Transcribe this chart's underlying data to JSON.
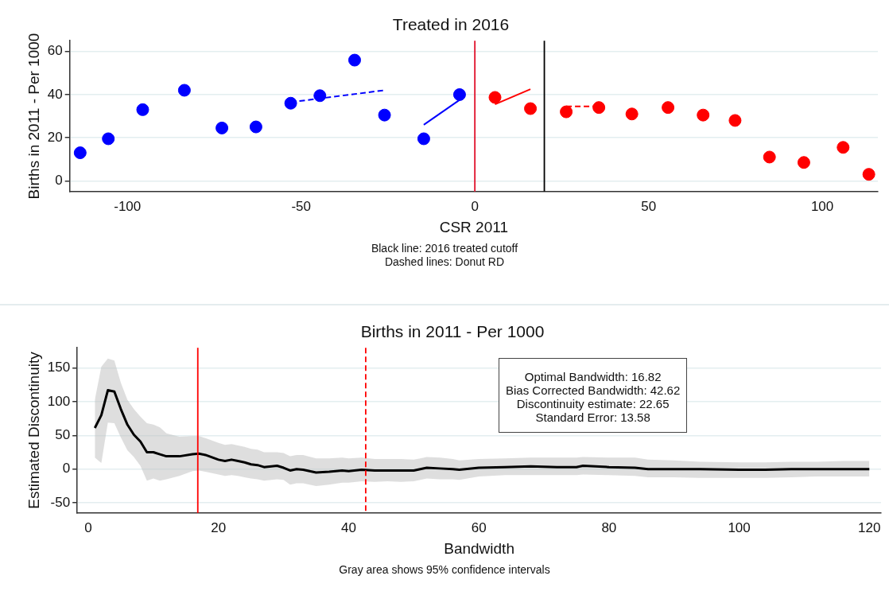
{
  "chart_data": [
    {
      "type": "scatter",
      "title": "Treated in 2016",
      "xlabel": "CSR 2011",
      "ylabel": "Births in 2011 - Per 1000",
      "xlim": [
        -116.6,
        116
      ],
      "xticks": [
        -100,
        -50,
        0,
        50,
        100
      ],
      "ylim": [
        -5,
        65
      ],
      "yticks": [
        0,
        20,
        40,
        60
      ],
      "grid": "y",
      "legend": false,
      "marker": "circle",
      "series": [
        {
          "color": "#0000ff",
          "x": [
            -113.6,
            -105.5,
            -95.6,
            -83.6,
            -72.8,
            -63,
            -53,
            -44.6,
            -34.6,
            -26,
            -14.7,
            -4.4
          ],
          "values": [
            13,
            19.5,
            33,
            42,
            24.5,
            25,
            36,
            39.5,
            56,
            30.5,
            19.5,
            40
          ]
        },
        {
          "color": "#ff0000",
          "x": [
            5.8,
            16,
            26.3,
            35.7,
            45.2,
            55.6,
            65.7,
            74.9,
            84.8,
            94.7,
            106,
            113.4
          ],
          "values": [
            38.7,
            33.5,
            32,
            34,
            31,
            34,
            30.5,
            28,
            11,
            8.5,
            15.5,
            3
          ]
        },
        {
          "type": "line",
          "marker": "none",
          "line_style": "dashed",
          "color": "#0000ff",
          "x": [
            -53,
            -26
          ],
          "values": [
            36.5,
            42
          ]
        },
        {
          "type": "line",
          "marker": "none",
          "line_style": "solid",
          "color": "#0000ff",
          "x": [
            -14.7,
            -4.4
          ],
          "values": [
            26,
            37.5
          ]
        },
        {
          "type": "line",
          "marker": "none",
          "line_style": "solid",
          "color": "#ff0000",
          "x": [
            5.8,
            16
          ],
          "values": [
            35.5,
            42.5
          ]
        },
        {
          "type": "line",
          "marker": "none",
          "line_style": "dashed",
          "color": "#ff0000",
          "x": [
            26.3,
            35.7
          ],
          "values": [
            34.5,
            34.5
          ]
        }
      ],
      "ref_lines": [
        {
          "axis": "x",
          "value": 0,
          "color": "#e0102a",
          "line_style": "solid"
        },
        {
          "axis": "x",
          "value": 20,
          "color": "#000000",
          "line_style": "solid"
        }
      ],
      "annotations": [
        "Black line: 2016 treated cutoff",
        "Dashed lines: Donut RD"
      ]
    },
    {
      "type": "line",
      "title": "Births in 2011 - Per 1000",
      "xlabel": "Bandwidth",
      "ylabel": "Estimated Discontinuity",
      "xlim": [
        -1.7,
        121.8
      ],
      "xticks": [
        0,
        20,
        40,
        60,
        80,
        100,
        120
      ],
      "ylim": [
        -65,
        180
      ],
      "yticks": [
        -50,
        0,
        50,
        100,
        150
      ],
      "grid": "y",
      "legend": false,
      "marker": "none",
      "line_style": "solid",
      "x": [
        1,
        2,
        3,
        4,
        5,
        6,
        7,
        8,
        9,
        10,
        11,
        12,
        14,
        16,
        17,
        18,
        20,
        21,
        22,
        23,
        24,
        25,
        26,
        27,
        29,
        30,
        31,
        32,
        33,
        35,
        37,
        39,
        40,
        42,
        44,
        46,
        48,
        50,
        51,
        52,
        54,
        56,
        57,
        60,
        64,
        68,
        72,
        75,
        76,
        80,
        84,
        86,
        90,
        94,
        100,
        104,
        108,
        112,
        116,
        120
      ],
      "series": [
        {
          "color": "#000000",
          "values": [
            61,
            80,
            117,
            115,
            89,
            66,
            51,
            41,
            25,
            25,
            22,
            19,
            19,
            22,
            23,
            21,
            14,
            12,
            14,
            12,
            10,
            7,
            6,
            3,
            5,
            2,
            -2,
            0,
            -1,
            -5,
            -4,
            -2,
            -3,
            -1,
            -2,
            -2,
            -2,
            -2,
            0,
            2,
            1,
            0,
            -1,
            2,
            3,
            4,
            3,
            3,
            5,
            3,
            2,
            0,
            0,
            0,
            -1,
            -1,
            0,
            0,
            0,
            0
          ],
          "lower": [
            17,
            9,
            69,
            68,
            47,
            28,
            18,
            5,
            -17,
            -14,
            -17,
            -15,
            -10,
            -3,
            -2,
            -4,
            -8,
            -10,
            -9,
            -10,
            -12,
            -14,
            -15,
            -17,
            -15,
            -16,
            -23,
            -21,
            -21,
            -25,
            -23,
            -20,
            -20,
            -18,
            -19,
            -18,
            -19,
            -18,
            -16,
            -14,
            -15,
            -15,
            -16,
            -11,
            -9,
            -9,
            -9,
            -9,
            -8,
            -9,
            -10,
            -12,
            -12,
            -13,
            -13,
            -13,
            -12,
            -11,
            -11,
            -11
          ],
          "upper": [
            103,
            152,
            164,
            161,
            128,
            103,
            89,
            78,
            68,
            66,
            62,
            53,
            48,
            49,
            49,
            46,
            39,
            36,
            37,
            35,
            33,
            30,
            29,
            25,
            25,
            24,
            19,
            21,
            21,
            16,
            16,
            17,
            16,
            17,
            15,
            15,
            15,
            14,
            16,
            18,
            17,
            15,
            13,
            15,
            16,
            17,
            17,
            17,
            18,
            17,
            17,
            14,
            13,
            11,
            10,
            10,
            11,
            11,
            12,
            12
          ]
        }
      ],
      "ref_lines": [
        {
          "axis": "x",
          "value": 16.82,
          "color": "#ff0000",
          "line_style": "solid"
        },
        {
          "axis": "x",
          "value": 42.62,
          "color": "#ff0000",
          "line_style": "dashed"
        }
      ],
      "annotations": [
        "Optimal Bandwidth: 16.82\nBias Corrected Bandwidth: 42.62\nDiscontinuity estimate: 22.65\nStandard Error: 13.58",
        "Gray area shows 95% confidence intervals"
      ]
    }
  ]
}
